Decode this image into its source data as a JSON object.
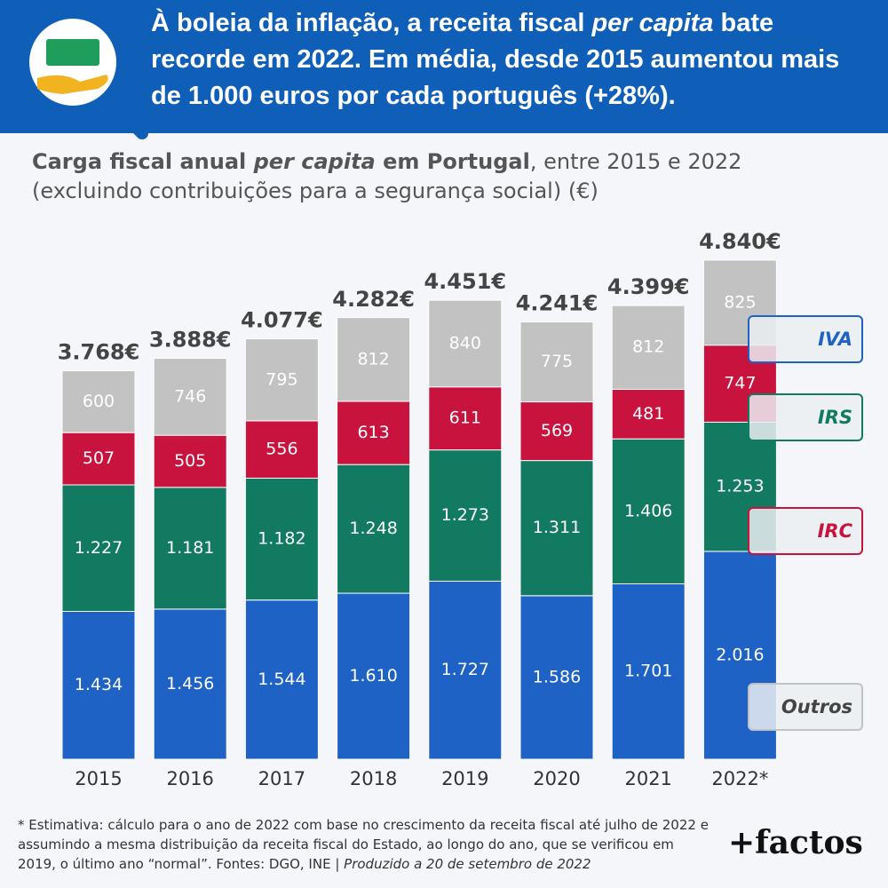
{
  "chart_data": {
    "type": "stacked_bar",
    "title_parts": [
      "À boleia da inflação, a receita fiscal ",
      "per capita",
      " bate recorde em 2022. Em média, desde 2015 aumentou mais de 1.000 euros por cada português (+28%)."
    ],
    "subtitle_parts": [
      "Carga fiscal anual ",
      "per capita",
      " em Portugal",
      ", entre 2015 e 2022 (excluindo contribuições para a segurança social) (€)"
    ],
    "categories": [
      "2015",
      "2016",
      "2017",
      "2018",
      "2019",
      "2020",
      "2021",
      "2022*"
    ],
    "series": [
      {
        "name": "IVA",
        "color": "#1e62c6",
        "values": [
          1434,
          1456,
          1544,
          1610,
          1727,
          1586,
          1701,
          2016
        ],
        "value_labels": [
          "1.434",
          "1.456",
          "1.544",
          "1.610",
          "1.727",
          "1.586",
          "1.701",
          "2.016"
        ]
      },
      {
        "name": "IRS",
        "color": "#137a62",
        "values": [
          1227,
          1181,
          1182,
          1248,
          1273,
          1311,
          1406,
          1253
        ],
        "value_labels": [
          "1.227",
          "1.181",
          "1.182",
          "1.248",
          "1.273",
          "1.311",
          "1.406",
          "1.253"
        ]
      },
      {
        "name": "IRC",
        "color": "#c8133e",
        "values": [
          507,
          505,
          556,
          613,
          611,
          569,
          481,
          747
        ]
      },
      {
        "name": "Outros",
        "color": "#c2c2c2",
        "values": [
          600,
          746,
          795,
          812,
          840,
          775,
          812,
          825
        ]
      }
    ],
    "totals": {
      "values": [
        3768,
        3888,
        4077,
        4282,
        4451,
        4241,
        4399,
        4840
      ],
      "value_labels": [
        "3.768€",
        "3.888€",
        "4.077€",
        "4.282€",
        "4.451€",
        "4.241€",
        "4.399€",
        "4.840€"
      ]
    },
    "footnote_parts": [
      "* Estimativa: cálculo para o ano de 2022 com base no crescimento da receita fiscal até julho de 2022 e assumindo a mesma distribuição da receita fiscal do Estado, ao longo do ano, que se verificou em 2019, o último ano “normal”. Fontes: DGO, INE | ",
      "Produzido a 20 de setembro de 2022"
    ],
    "logo": "+factos"
  }
}
